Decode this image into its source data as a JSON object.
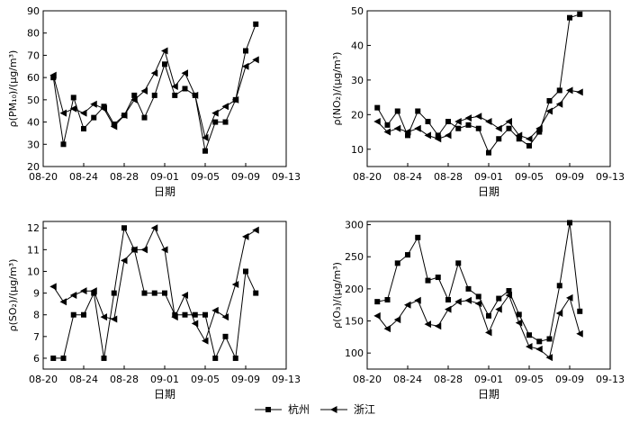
{
  "legend": [
    {
      "name": "杭州",
      "marker": "square"
    },
    {
      "name": "浙江",
      "marker": "triangle-left"
    }
  ],
  "colors": {
    "line": "#000000",
    "axis": "#000000"
  },
  "chart_data": [
    {
      "type": "line",
      "ylabel": "ρ(PM₁₀)/(μg/m³)",
      "xlabel": "日期",
      "xticks": [
        "08-20",
        "08-24",
        "08-28",
        "09-01",
        "09-05",
        "09-09",
        "09-13"
      ],
      "xlim": [
        "08-20",
        "09-13"
      ],
      "ylim": [
        20,
        90
      ],
      "yticks": [
        20,
        30,
        40,
        50,
        60,
        70,
        80,
        90
      ],
      "grid": false,
      "series": [
        {
          "name": "杭州",
          "marker": "square",
          "x": [
            "08-21",
            "08-22",
            "08-23",
            "08-24",
            "08-25",
            "08-26",
            "08-27",
            "08-28",
            "08-29",
            "08-30",
            "08-31",
            "09-01",
            "09-02",
            "09-03",
            "09-04",
            "09-05",
            "09-06",
            "09-07",
            "09-08",
            "09-09",
            "09-10"
          ],
          "values": [
            60,
            30,
            51,
            37,
            42,
            47,
            39,
            43,
            52,
            42,
            52,
            66,
            52,
            55,
            52,
            27,
            40,
            40,
            50,
            72,
            84
          ]
        },
        {
          "name": "浙江",
          "marker": "triangle-left",
          "x": [
            "08-21",
            "08-22",
            "08-23",
            "08-24",
            "08-25",
            "08-26",
            "08-27",
            "08-28",
            "08-29",
            "08-30",
            "08-31",
            "09-01",
            "09-02",
            "09-03",
            "09-04",
            "09-05",
            "09-06",
            "09-07",
            "09-08",
            "09-09",
            "09-10"
          ],
          "values": [
            61,
            44,
            46,
            44,
            48,
            46,
            38,
            43,
            50,
            54,
            62,
            72,
            56,
            62,
            52,
            33,
            44,
            47,
            50,
            65,
            68
          ]
        }
      ]
    },
    {
      "type": "line",
      "ylabel": "ρ(NO₂)/(μg/m³)",
      "xlabel": "日期",
      "xticks": [
        "08-20",
        "08-24",
        "08-28",
        "09-01",
        "09-05",
        "09-09",
        "09-13"
      ],
      "xlim": [
        "08-20",
        "09-13"
      ],
      "ylim": [
        5,
        50
      ],
      "yticks": [
        10,
        20,
        30,
        40,
        50
      ],
      "grid": false,
      "series": [
        {
          "name": "杭州",
          "marker": "square",
          "x": [
            "08-21",
            "08-22",
            "08-23",
            "08-24",
            "08-25",
            "08-26",
            "08-27",
            "08-28",
            "08-29",
            "08-30",
            "08-31",
            "09-01",
            "09-02",
            "09-03",
            "09-04",
            "09-05",
            "09-06",
            "09-07",
            "09-08",
            "09-09",
            "09-10"
          ],
          "values": [
            22,
            17,
            21,
            14,
            21,
            18,
            14,
            18,
            16,
            17,
            16,
            9,
            13,
            16,
            13,
            11,
            15,
            24,
            27,
            48,
            49
          ]
        },
        {
          "name": "浙江",
          "marker": "triangle-left",
          "x": [
            "08-21",
            "08-22",
            "08-23",
            "08-24",
            "08-25",
            "08-26",
            "08-27",
            "08-28",
            "08-29",
            "08-30",
            "08-31",
            "09-01",
            "09-02",
            "09-03",
            "09-04",
            "09-05",
            "09-06",
            "09-07",
            "09-08",
            "09-09",
            "09-10"
          ],
          "values": [
            18,
            15,
            16,
            15,
            16,
            14,
            13,
            14,
            18,
            19,
            19.5,
            18,
            16,
            18,
            14,
            13,
            16,
            21,
            23,
            27,
            26.5
          ]
        }
      ]
    },
    {
      "type": "line",
      "ylabel": "ρ(SO₂)/(μg/m³)",
      "xlabel": "日期",
      "xticks": [
        "08-20",
        "08-24",
        "08-28",
        "09-01",
        "09-05",
        "09-09",
        "09-13"
      ],
      "xlim": [
        "08-20",
        "09-13"
      ],
      "ylim": [
        5.5,
        12.3
      ],
      "yticks": [
        6,
        7,
        8,
        9,
        10,
        11,
        12
      ],
      "grid": false,
      "series": [
        {
          "name": "杭州",
          "marker": "square",
          "x": [
            "08-21",
            "08-22",
            "08-23",
            "08-24",
            "08-25",
            "08-26",
            "08-27",
            "08-28",
            "08-29",
            "08-30",
            "08-31",
            "09-01",
            "09-02",
            "09-03",
            "09-04",
            "09-05",
            "09-06",
            "09-07",
            "09-08",
            "09-09",
            "09-10"
          ],
          "values": [
            6,
            6,
            8,
            8,
            9,
            6,
            9,
            12,
            11,
            9,
            9,
            9,
            8,
            8,
            8,
            8,
            6,
            7,
            6,
            10,
            9
          ]
        },
        {
          "name": "浙江",
          "marker": "triangle-left",
          "x": [
            "08-21",
            "08-22",
            "08-23",
            "08-24",
            "08-25",
            "08-26",
            "08-27",
            "08-28",
            "08-29",
            "08-30",
            "08-31",
            "09-01",
            "09-02",
            "09-03",
            "09-04",
            "09-05",
            "09-06",
            "09-07",
            "09-08",
            "09-09",
            "09-10"
          ],
          "values": [
            9.3,
            8.6,
            8.9,
            9.1,
            9.1,
            7.9,
            7.8,
            10.5,
            11,
            11,
            12,
            11,
            7.9,
            8.9,
            7.6,
            6.8,
            8.2,
            7.9,
            9.4,
            11.6,
            11.9
          ]
        }
      ]
    },
    {
      "type": "line",
      "ylabel": "ρ(O₃)/(μg/m³)",
      "xlabel": "日期",
      "xticks": [
        "08-20",
        "08-24",
        "08-28",
        "09-01",
        "09-05",
        "09-09",
        "09-13"
      ],
      "xlim": [
        "08-20",
        "09-13"
      ],
      "ylim": [
        75,
        305
      ],
      "yticks": [
        100,
        150,
        200,
        250,
        300
      ],
      "grid": false,
      "series": [
        {
          "name": "杭州",
          "marker": "square",
          "x": [
            "08-21",
            "08-22",
            "08-23",
            "08-24",
            "08-25",
            "08-26",
            "08-27",
            "08-28",
            "08-29",
            "08-30",
            "08-31",
            "09-01",
            "09-02",
            "09-03",
            "09-04",
            "09-05",
            "09-06",
            "09-07",
            "09-08",
            "09-09",
            "09-10"
          ],
          "values": [
            180,
            183,
            240,
            253,
            280,
            213,
            218,
            183,
            240,
            200,
            188,
            158,
            185,
            197,
            160,
            128,
            118,
            122,
            205,
            303,
            165
          ]
        },
        {
          "name": "浙江",
          "marker": "triangle-left",
          "x": [
            "08-21",
            "08-22",
            "08-23",
            "08-24",
            "08-25",
            "08-26",
            "08-27",
            "08-28",
            "08-29",
            "08-30",
            "08-31",
            "09-01",
            "09-02",
            "09-03",
            "09-04",
            "09-05",
            "09-06",
            "09-07",
            "09-08",
            "09-09",
            "09-10"
          ],
          "values": [
            158,
            138,
            152,
            175,
            182,
            145,
            142,
            168,
            180,
            182,
            177,
            132,
            168,
            190,
            147,
            110,
            106,
            93,
            162,
            186,
            130
          ]
        }
      ]
    }
  ]
}
